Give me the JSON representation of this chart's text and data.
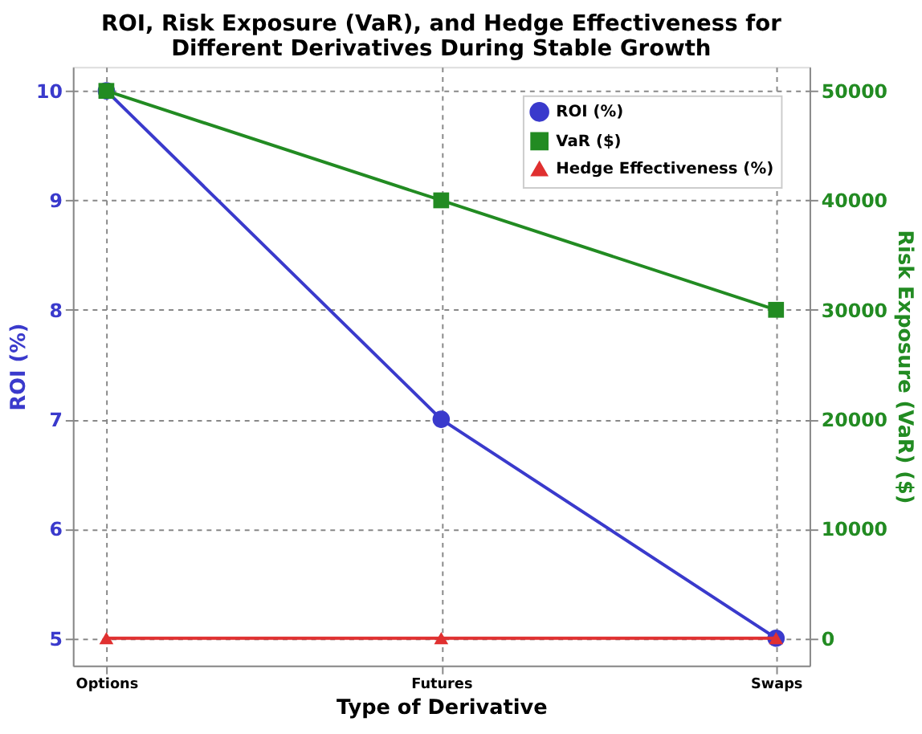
{
  "chart_data": {
    "type": "line",
    "title": "ROI, Risk Exposure (VaR), and Hedge Effectiveness for\nDifferent Derivatives During Stable Growth",
    "xlabel": "Type of Derivative",
    "ylabel": "ROI (%)",
    "y2label": "Risk Exposure (VaR) ($)",
    "categories": [
      "Options",
      "Futures",
      "Swaps"
    ],
    "series": [
      {
        "name": "ROI (%)",
        "color": "#3a3acc",
        "values": [
          10,
          7,
          5
        ],
        "marker": "circle"
      },
      {
        "name": "VaR ($)",
        "color": "#228b22",
        "values": [
          50000,
          40000,
          30000
        ],
        "axis": "y2",
        "marker": "square"
      },
      {
        "name": "Hedge Effectiveness (%)",
        "color": "#e03030",
        "values": [
          0,
          0,
          0
        ],
        "axis": "y2",
        "marker": "triangle"
      }
    ],
    "ylim": [
      4.75,
      10.22
    ],
    "yticks": [
      5,
      6,
      7,
      8,
      9,
      10
    ],
    "y2lim": [
      -2500,
      52200
    ],
    "y2ticks": [
      0,
      10000,
      20000,
      30000,
      40000,
      50000
    ],
    "grid": true,
    "legend": "top right",
    "line_style": "solid"
  }
}
